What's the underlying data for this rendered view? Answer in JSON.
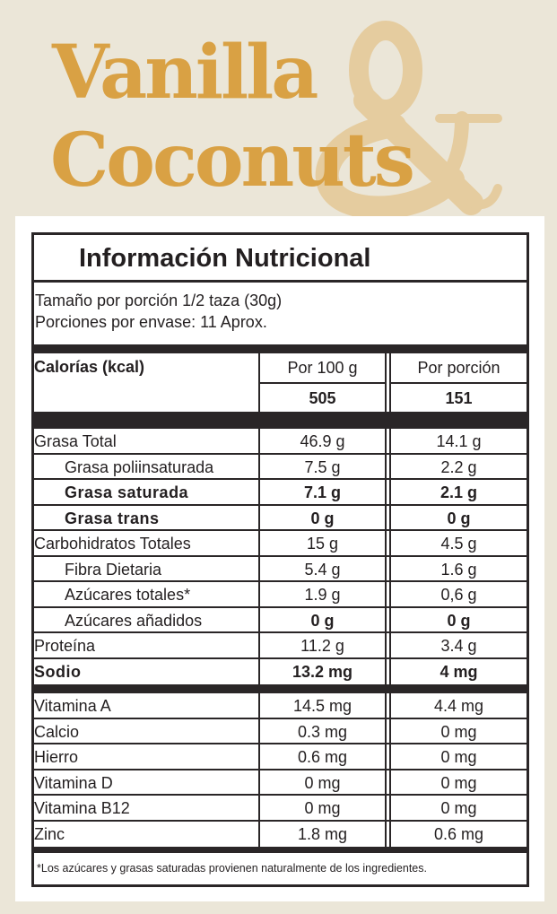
{
  "brand": {
    "line1": "Vanilla",
    "line2": "Coconuts",
    "ampersand": "&",
    "colors": {
      "text": "#d9a144",
      "ampersand": "#e5cc9f",
      "background": "#ebe6d8"
    }
  },
  "label": {
    "title": "Información Nutricional",
    "serving_size": "Tamaño por porción 1/2 taza (30g)",
    "servings_per_container": "Porciones por envase: 11 Aprox.",
    "calories": {
      "label": "Calorías (kcal)",
      "col1_header": "Por 100 g",
      "col2_header": "Por porción",
      "per100": "505",
      "perServing": "151"
    },
    "nutrients": [
      {
        "name": "Grasa Total",
        "per100": "46.9 g",
        "perServing": "14.1 g",
        "bold": false,
        "indent": false
      },
      {
        "name": "Grasa poliinsaturada",
        "per100": "7.5 g",
        "perServing": "2.2 g",
        "bold": false,
        "indent": true
      },
      {
        "name": "Grasa saturada",
        "per100": "7.1 g",
        "perServing": "2.1 g",
        "bold": true,
        "indent": true
      },
      {
        "name": "Grasa trans",
        "per100": "0 g",
        "perServing": "0 g",
        "bold": true,
        "indent": true
      },
      {
        "name": "Carbohidratos Totales",
        "per100": "15 g",
        "perServing": "4.5 g",
        "bold": false,
        "indent": false
      },
      {
        "name": "Fibra Dietaria",
        "per100": "5.4 g",
        "perServing": "1.6 g",
        "bold": false,
        "indent": true
      },
      {
        "name": "Azúcares totales*",
        "per100": "1.9 g",
        "perServing": "0,6 g",
        "bold": false,
        "indent": true
      },
      {
        "name": "Azúcares añadidos",
        "per100": "0 g",
        "perServing": "0 g",
        "bold": false,
        "indent": true,
        "boldValues": true
      },
      {
        "name": "Proteína",
        "per100": "11.2 g",
        "perServing": "3.4 g",
        "bold": false,
        "indent": false
      },
      {
        "name": "Sodio",
        "per100": "13.2 mg",
        "perServing": "4 mg",
        "bold": true,
        "indent": false
      }
    ],
    "vitamins": [
      {
        "name": "Vitamina A",
        "per100": "14.5 mg",
        "perServing": "4.4 mg"
      },
      {
        "name": "Calcio",
        "per100": "0.3 mg",
        "perServing": "0 mg"
      },
      {
        "name": "Hierro",
        "per100": "0.6 mg",
        "perServing": "0 mg"
      },
      {
        "name": "Vitamina D",
        "per100": "0 mg",
        "perServing": "0 mg"
      },
      {
        "name": "Vitamina B12",
        "per100": "0 mg",
        "perServing": "0 mg"
      },
      {
        "name": "Zinc",
        "per100": "1.8 mg",
        "perServing": "0.6 mg"
      }
    ],
    "footnote": "*Los azúcares y grasas saturadas provienen naturalmente de los ingredientes."
  }
}
